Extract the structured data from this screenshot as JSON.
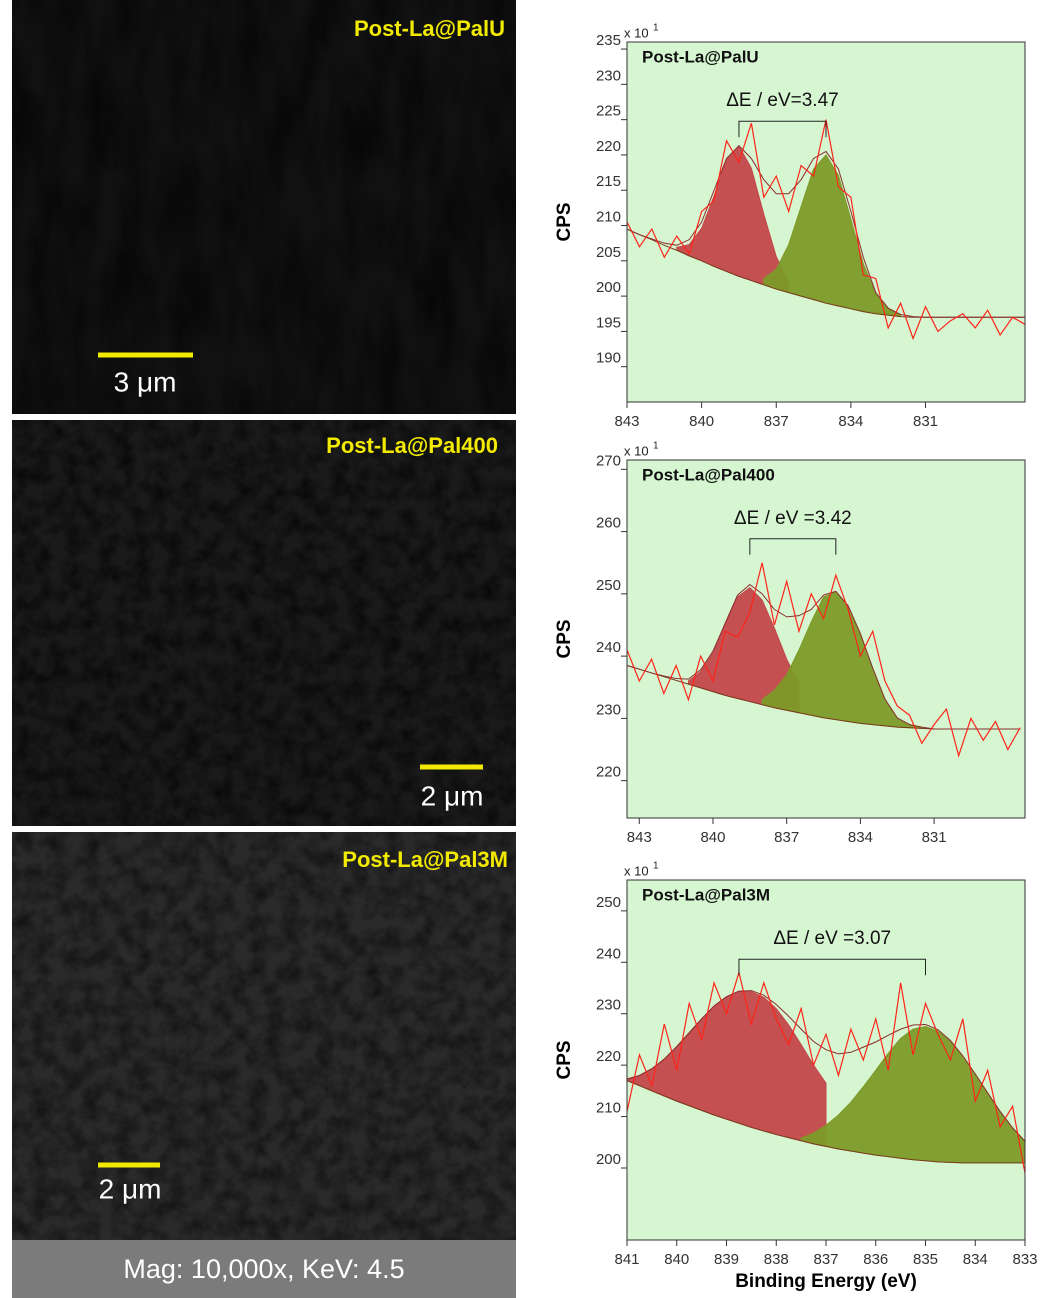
{
  "images": [
    {
      "label": "Post-La@PalU",
      "scale": "3 μm"
    },
    {
      "label": "Post-La@Pal400",
      "scale": "2 μm"
    },
    {
      "label": "Post-La@Pal3M",
      "scale": "2 μm"
    }
  ],
  "caption": "Mag: 10,000x, KeV: 4.5",
  "chart_data": [
    {
      "type": "line",
      "title": "Post-La@PalU",
      "annotation": "ΔE / eV=3.47",
      "ylabel": "CPS",
      "y_multiplier": "x 10",
      "y_multiplier_exp": "1",
      "plot_background": "#d6f6d2",
      "xlim": [
        843,
        827
      ],
      "xticks": [
        843,
        840,
        837,
        834,
        831
      ],
      "ylim": [
        185,
        236
      ],
      "yticks": [
        190,
        195,
        200,
        205,
        210,
        215,
        220,
        225,
        230,
        235
      ],
      "x": [
        843,
        842.5,
        842,
        841.5,
        841,
        840.5,
        840,
        839.5,
        839,
        838.5,
        838,
        837.5,
        837,
        836.5,
        836,
        835.5,
        835,
        834.5,
        834,
        833.5,
        833,
        832.5,
        832,
        831.5,
        831,
        830.5,
        830,
        829.5,
        829,
        828.5,
        828,
        827.5,
        827
      ],
      "series": [
        {
          "color": "#7a3b1c",
          "values": [
            209.5,
            208.7,
            208,
            207.2,
            206.5,
            205.7,
            205,
            204.2,
            203.5,
            202.8,
            202.2,
            201.6,
            201,
            200.5,
            200,
            199.5,
            199,
            198.6,
            198.2,
            197.8,
            197.5,
            197.3,
            197.1,
            197,
            197,
            197,
            197,
            197,
            197,
            197,
            197,
            197,
            197
          ]
        },
        {
          "color": "#c4474a",
          "fill": true,
          "values": [
            null,
            null,
            null,
            null,
            206.9,
            207.3,
            209.6,
            214.2,
            219.4,
            221.3,
            218.1,
            211.6,
            205.6,
            202.1,
            null,
            null,
            null,
            null,
            null,
            null,
            null,
            null,
            null,
            null,
            null,
            null,
            null,
            null,
            null,
            null,
            null,
            null,
            null
          ]
        },
        {
          "color": "#7d9a28",
          "fill": true,
          "values": [
            null,
            null,
            null,
            null,
            null,
            null,
            null,
            null,
            null,
            null,
            null,
            202.5,
            203.8,
            207.3,
            212.7,
            218,
            220,
            217.1,
            210.9,
            204.6,
            200.3,
            198.2,
            197.3,
            null,
            null,
            null,
            null,
            null,
            null,
            null,
            null,
            null,
            null
          ]
        },
        {
          "color": "#8a2e2e",
          "values": [
            209.5,
            208.7,
            208.1,
            207.5,
            207.2,
            208,
            210.5,
            215,
            219.5,
            221.3,
            219.5,
            216.5,
            214.5,
            214.5,
            216.5,
            219.5,
            220.5,
            218,
            212,
            205.5,
            200.5,
            198.3,
            197.4,
            197.1,
            197,
            197,
            197,
            197,
            197,
            197,
            197,
            197,
            197
          ]
        },
        {
          "color": "#ff2418",
          "values": [
            210.5,
            207,
            209.5,
            205.5,
            208.5,
            206,
            212,
            213.5,
            222,
            219,
            224.5,
            214,
            217,
            212,
            218.5,
            217,
            225,
            215.5,
            214,
            203,
            202.5,
            195.5,
            199,
            194,
            198.5,
            195,
            196.5,
            197.5,
            195.5,
            198,
            194.5,
            197,
            196
          ]
        }
      ]
    },
    {
      "type": "line",
      "title": "Post-La@Pal400",
      "annotation": "ΔE / eV =3.42",
      "ylabel": "CPS",
      "y_multiplier": "x 10",
      "y_multiplier_exp": "1",
      "plot_background": "#d6f6d2",
      "xlim": [
        843.5,
        827.3
      ],
      "xticks": [
        843,
        840,
        837,
        834,
        831
      ],
      "ylim": [
        214,
        271.5
      ],
      "yticks": [
        220,
        230,
        240,
        250,
        260,
        270
      ],
      "x": [
        843.5,
        843,
        842.5,
        842,
        841.5,
        841,
        840.5,
        840,
        839.5,
        839,
        838.5,
        838,
        837.5,
        837,
        836.5,
        836,
        835.5,
        835,
        834.5,
        834,
        833.5,
        833,
        832.5,
        832,
        831.5,
        831,
        830.5,
        830,
        829.5,
        829,
        828.5,
        828,
        827.5
      ],
      "series": [
        {
          "color": "#7a3b1c",
          "values": [
            238.5,
            237.9,
            237.3,
            236.7,
            236.1,
            235.5,
            234.9,
            234.3,
            233.7,
            233.2,
            232.7,
            232.2,
            231.7,
            231.3,
            230.9,
            230.5,
            230.1,
            229.8,
            229.5,
            229.2,
            229,
            228.8,
            228.6,
            228.5,
            228.4,
            228.3,
            228.3,
            228.3,
            228.3,
            228.3,
            228.3,
            228.3,
            228.3
          ]
        },
        {
          "color": "#c4474a",
          "fill": true,
          "values": [
            null,
            null,
            null,
            null,
            null,
            236,
            237.5,
            240.5,
            245,
            249.5,
            251,
            249,
            244.5,
            239.5,
            235.5,
            null,
            null,
            null,
            null,
            null,
            null,
            null,
            null,
            null,
            null,
            null,
            null,
            null,
            null,
            null,
            null,
            null,
            null
          ]
        },
        {
          "color": "#7d9a28",
          "fill": true,
          "values": [
            null,
            null,
            null,
            null,
            null,
            null,
            null,
            null,
            null,
            null,
            null,
            233,
            234.5,
            237,
            241,
            245.5,
            249.5,
            250.3,
            248,
            243.5,
            238,
            233,
            230,
            229,
            228.6,
            null,
            null,
            null,
            null,
            null,
            null,
            null,
            null
          ]
        },
        {
          "color": "#8a2e2e",
          "values": [
            238.5,
            237.9,
            237.3,
            236.8,
            236.4,
            236.3,
            237.8,
            240.8,
            245.3,
            249.8,
            251.5,
            250,
            247.5,
            246.3,
            246.5,
            247.5,
            249.8,
            250.4,
            248.1,
            243.6,
            238.1,
            233.1,
            230.1,
            229,
            228.6,
            228.3,
            228.3,
            228.3,
            228.3,
            228.3,
            228.3,
            228.3,
            228.3
          ]
        },
        {
          "color": "#ff2418",
          "values": [
            241,
            236,
            239.5,
            234,
            238.5,
            233,
            240,
            236,
            244,
            243,
            247,
            255,
            245,
            252,
            244,
            250,
            246,
            253,
            247.5,
            240,
            244,
            236,
            232,
            230.5,
            226,
            229,
            231.5,
            224,
            230,
            226.5,
            229.5,
            225,
            228.5
          ]
        }
      ]
    },
    {
      "type": "line",
      "title": "Post-La@Pal3M",
      "annotation": "ΔE / eV =3.07",
      "ylabel": "CPS",
      "xlabel": "Binding Energy (eV)",
      "y_multiplier": "x 10",
      "y_multiplier_exp": "1",
      "plot_background": "#d6f6d2",
      "xlim": [
        841,
        833
      ],
      "xticks": [
        841,
        840,
        839,
        838,
        837,
        836,
        835,
        834,
        833
      ],
      "ylim": [
        186,
        256
      ],
      "yticks": [
        200,
        210,
        220,
        230,
        240,
        250
      ],
      "x": [
        841,
        840.75,
        840.5,
        840.25,
        840,
        839.75,
        839.5,
        839.25,
        839,
        838.75,
        838.5,
        838.25,
        838,
        837.75,
        837.5,
        837.25,
        837,
        836.75,
        836.5,
        836.25,
        836,
        835.75,
        835.5,
        835.25,
        835,
        834.75,
        834.5,
        834.25,
        834,
        833.75,
        833.5,
        833.25,
        833
      ],
      "series": [
        {
          "color": "#7a3b1c",
          "values": [
            217,
            216,
            215,
            214,
            213,
            212.1,
            211.2,
            210.3,
            209.5,
            208.7,
            207.9,
            207.2,
            206.5,
            205.9,
            205.3,
            204.7,
            204.2,
            203.7,
            203.3,
            202.9,
            202.5,
            202.2,
            201.9,
            201.6,
            201.4,
            201.2,
            201.1,
            201,
            201,
            201,
            201,
            201,
            201
          ]
        },
        {
          "color": "#c4474a",
          "fill": true,
          "values": [
            217.3,
            218,
            219.3,
            221.2,
            223.6,
            226.3,
            229,
            231.5,
            233.3,
            234.3,
            234.3,
            233.2,
            231,
            227.8,
            224,
            220,
            216.5,
            null,
            null,
            null,
            null,
            null,
            null,
            null,
            null,
            null,
            null,
            null,
            null,
            null,
            null,
            null,
            null
          ]
        },
        {
          "color": "#7d9a28",
          "fill": true,
          "values": [
            null,
            null,
            null,
            null,
            null,
            null,
            null,
            null,
            null,
            null,
            null,
            null,
            null,
            null,
            205.8,
            206.8,
            208.3,
            210.3,
            212.8,
            215.8,
            219,
            222.3,
            225.2,
            227,
            227.5,
            226.6,
            224.6,
            221.7,
            218.2,
            214.5,
            211,
            207.8,
            205.2
          ]
        },
        {
          "color": "#8a2e2e",
          "values": [
            217.3,
            218,
            219.3,
            221.2,
            223.6,
            226.3,
            229,
            231.5,
            233.3,
            234.4,
            234.5,
            233.6,
            231.8,
            229.5,
            227,
            224.6,
            223,
            222.2,
            222.5,
            223.5,
            224.5,
            225.8,
            227,
            227.8,
            227.9,
            226.9,
            224.8,
            221.8,
            218.3,
            214.6,
            211,
            207.8,
            205.2
          ]
        },
        {
          "color": "#ff2418",
          "values": [
            211,
            222,
            216,
            228,
            219,
            232,
            225,
            236,
            230,
            238,
            228,
            236,
            229,
            224,
            231,
            220,
            226,
            218,
            227,
            221,
            229,
            219,
            236,
            222,
            232,
            226,
            221,
            229,
            213,
            219,
            208,
            212,
            199
          ]
        }
      ]
    }
  ]
}
